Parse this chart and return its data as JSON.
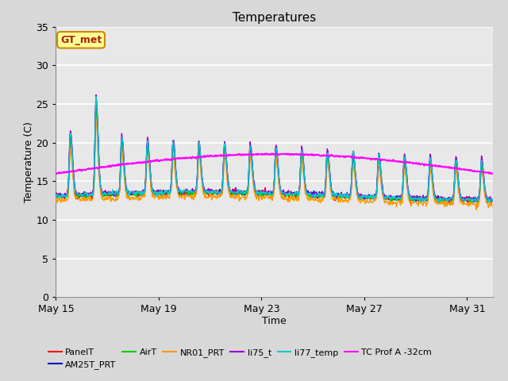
{
  "title": "Temperatures",
  "xlabel": "Time",
  "ylabel": "Temperature (C)",
  "ylim": [
    0,
    35
  ],
  "yticks": [
    0,
    5,
    10,
    15,
    20,
    25,
    30,
    35
  ],
  "x_start_day": 15,
  "n_days": 17,
  "xtick_days": [
    15,
    19,
    23,
    27,
    31
  ],
  "xtick_labels": [
    "May 15",
    "May 19",
    "May 23",
    "May 27",
    "May 31"
  ],
  "fig_bg_color": "#d8d8d8",
  "plot_bg_color": "#e8e8e8",
  "grid_color": "#ffffff",
  "series": {
    "PanelT": {
      "color": "#ff0000",
      "lw": 1.0
    },
    "AM25T_PRT": {
      "color": "#0000cc",
      "lw": 1.0
    },
    "AirT": {
      "color": "#00cc00",
      "lw": 1.0
    },
    "NR01_PRT": {
      "color": "#ff9900",
      "lw": 1.0
    },
    "li75_t": {
      "color": "#9900cc",
      "lw": 1.0
    },
    "li77_temp": {
      "color": "#00cccc",
      "lw": 1.0
    },
    "TC Prof A -32cm": {
      "color": "#ff00ff",
      "lw": 1.5
    }
  },
  "annotation_box": {
    "text": "GT_met",
    "facecolor": "#ffff99",
    "edgecolor": "#cc8800",
    "fontsize": 9,
    "fontweight": "bold",
    "color": "#aa2200"
  },
  "legend": {
    "row1": [
      "PanelT",
      "AM25T_PRT",
      "AirT",
      "NR01_PRT",
      "li75_t",
      "li77_temp"
    ],
    "row2": [
      "TC Prof A -32cm"
    ],
    "fontsize": 8
  }
}
